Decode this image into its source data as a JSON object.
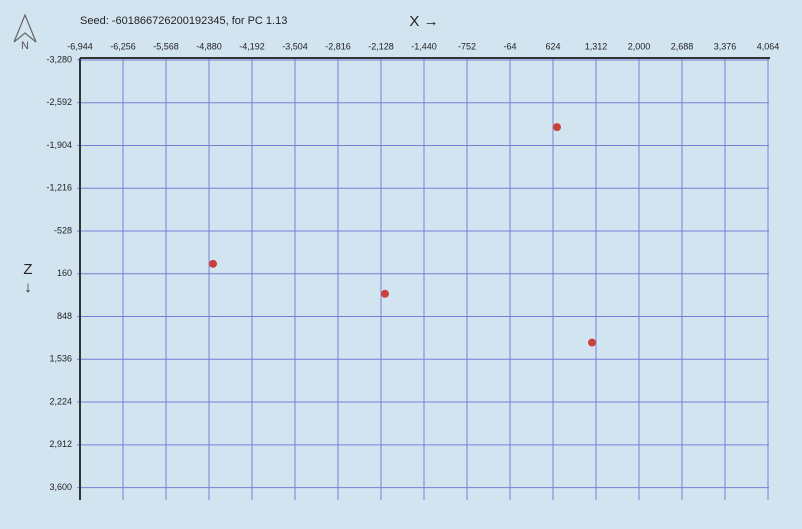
{
  "chart_data": {
    "type": "scatter",
    "title": "Seed: -601866726200192345, for PC 1.13",
    "x_label": "X →",
    "y_label": "Z ↓",
    "compass": "N",
    "x": [
      688,
      -4816,
      -2064,
      1248
    ],
    "values": [
      -2200,
      0,
      482,
      1267
    ],
    "color": "#c9413a",
    "xlim": [
      -6944,
      4064
    ],
    "ylim": [
      -3280,
      3800
    ],
    "xticks": [
      {
        "value": -6944,
        "label": "-6,944"
      },
      {
        "value": -6256,
        "label": "-6,256"
      },
      {
        "value": -5568,
        "label": "-5,568"
      },
      {
        "value": -4880,
        "label": "-4,880"
      },
      {
        "value": -4192,
        "label": "-4,192"
      },
      {
        "value": -3504,
        "label": "-3,504"
      },
      {
        "value": -2816,
        "label": "-2,816"
      },
      {
        "value": -2128,
        "label": "-2,128"
      },
      {
        "value": -1440,
        "label": "-1,440"
      },
      -752,
      -64,
      624,
      {
        "value": 1312,
        "label": "1,312"
      },
      {
        "value": 2000,
        "label": "2,000"
      },
      {
        "value": 2688,
        "label": "2,688"
      },
      {
        "value": 3376,
        "label": "3,376"
      },
      {
        "value": 4064,
        "label": "4,064"
      }
    ],
    "yticks": [
      {
        "value": -3280,
        "label": "-3,280"
      },
      {
        "value": -2592,
        "label": "-2,592"
      },
      {
        "value": -1904,
        "label": "-1,904"
      },
      {
        "value": -1216,
        "label": "-1,216"
      },
      -528,
      160,
      848,
      {
        "value": 1536,
        "label": "1,536"
      },
      {
        "value": 2224,
        "label": "2,224"
      },
      {
        "value": 2912,
        "label": "2,912"
      },
      {
        "value": 3600,
        "label": "3,600"
      }
    ],
    "grid": true
  }
}
